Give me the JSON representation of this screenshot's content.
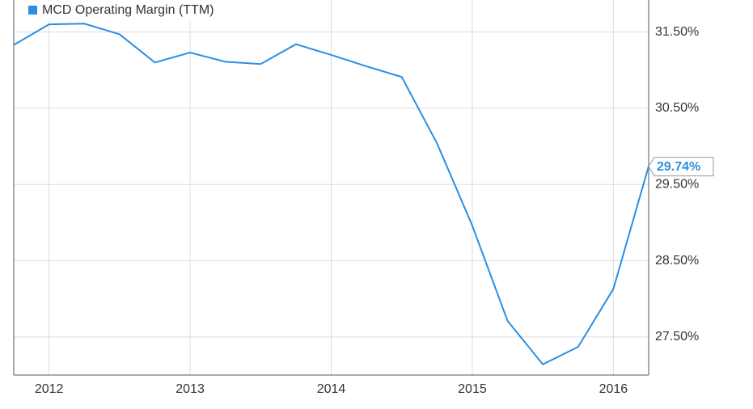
{
  "chart_data": {
    "type": "line",
    "x": [
      2011.75,
      2012,
      2012.25,
      2012.5,
      2012.75,
      2013,
      2013.25,
      2013.5,
      2013.75,
      2014,
      2014.25,
      2014.5,
      2014.75,
      2015,
      2015.25,
      2015.5,
      2015.75,
      2016,
      2016.25
    ],
    "series": [
      {
        "name": "MCD Operating Margin (TTM)",
        "color": "#2b8ee3",
        "values": [
          31.33,
          31.6,
          31.61,
          31.47,
          31.1,
          31.23,
          31.11,
          31.08,
          31.34,
          31.2,
          31.05,
          30.91,
          30.04,
          28.96,
          27.71,
          27.14,
          27.37,
          28.13,
          29.74
        ],
        "value_labels": [
          null,
          null,
          null,
          null,
          null,
          null,
          null,
          null,
          null,
          null,
          null,
          null,
          null,
          null,
          null,
          null,
          null,
          null,
          "29.74%"
        ]
      }
    ],
    "xlim": [
      2011.75,
      2016.25
    ],
    "xticks": [
      2012,
      2013,
      2014,
      2015,
      2016
    ],
    "ylim": [
      27.0,
      31.92
    ],
    "yticks": [
      {
        "value": 27.5,
        "label": "27.50%"
      },
      {
        "value": 28.5,
        "label": "28.50%"
      },
      {
        "value": 29.5,
        "label": "29.50%"
      },
      {
        "value": 30.5,
        "label": "30.50%"
      },
      {
        "value": 31.5,
        "label": "31.50%"
      }
    ],
    "grid": true,
    "legend": "top-left"
  }
}
